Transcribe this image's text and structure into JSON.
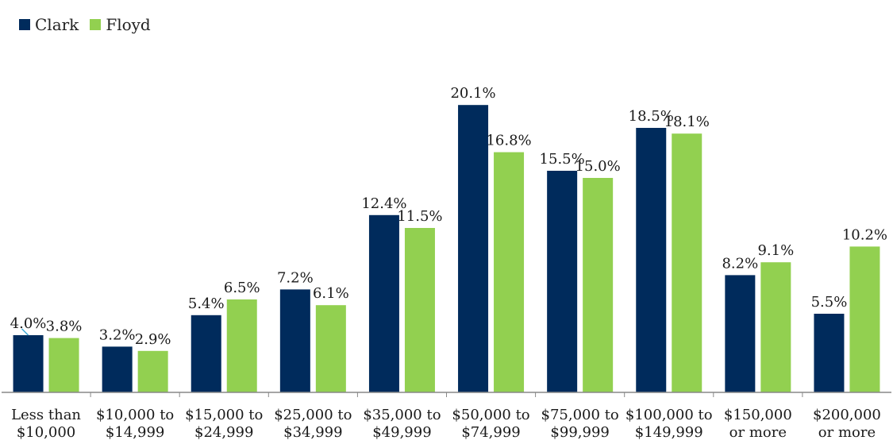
{
  "chart_data": {
    "type": "bar",
    "title": "",
    "xlabel": "",
    "ylabel": "",
    "ylim": [
      0,
      22
    ],
    "grid": false,
    "legend": "top-left",
    "categories": [
      [
        "Less than",
        "$10,000"
      ],
      [
        "$10,000 to",
        "$14,999"
      ],
      [
        "$15,000 to",
        "$24,999"
      ],
      [
        "$25,000 to",
        "$34,999"
      ],
      [
        "$35,000 to",
        "$49,999"
      ],
      [
        "$50,000 to",
        "$74,999"
      ],
      [
        "$75,000 to",
        "$99,999"
      ],
      [
        "$100,000 to",
        "$149,999"
      ],
      [
        "$150,000",
        "or more"
      ],
      [
        "$200,000",
        "or more"
      ]
    ],
    "series": [
      {
        "name": "Clark",
        "color": "#002b5c",
        "values": [
          4.0,
          3.2,
          5.4,
          7.2,
          12.4,
          20.1,
          15.5,
          18.5,
          8.2,
          5.5
        ],
        "labels": [
          "4.0%",
          "3.2%",
          "5.4%",
          "7.2%",
          "12.4%",
          "20.1%",
          "15.5%",
          "18.5%",
          "8.2%",
          "5.5%"
        ]
      },
      {
        "name": "Floyd",
        "color": "#92d050",
        "values": [
          3.8,
          2.9,
          6.5,
          6.1,
          11.5,
          16.8,
          15.0,
          18.1,
          9.1,
          10.2
        ],
        "labels": [
          "3.8%",
          "2.9%",
          "6.5%",
          "6.1%",
          "11.5%",
          "16.8%",
          "15.0%",
          "18.1%",
          "9.1%",
          "10.2%"
        ]
      }
    ]
  },
  "legend": {
    "items": [
      {
        "name": "Clark",
        "color": "#002b5c"
      },
      {
        "name": "Floyd",
        "color": "#92d050"
      }
    ]
  }
}
